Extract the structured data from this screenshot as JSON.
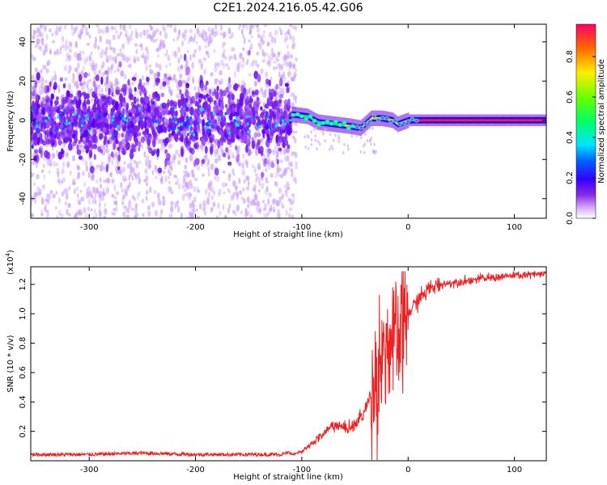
{
  "title": "C2E1.2024.216.05.42.G06",
  "chart_data": [
    {
      "type": "heatmap",
      "xlabel": "Height of straight line (km)",
      "ylabel": "Frequency (Hz)",
      "xlim": [
        -355,
        130
      ],
      "ylim": [
        -50,
        49
      ],
      "xticks": [
        -300,
        -200,
        -100,
        0,
        100
      ],
      "xtick_labels": [
        "-300",
        "-200",
        "-100",
        "0",
        "100"
      ],
      "yticks": [
        -40,
        -20,
        0,
        20,
        40
      ],
      "ytick_labels": [
        "-40",
        "-20",
        "0",
        "20",
        "40"
      ],
      "colorbar": {
        "label": "Normalized spectral amplitude",
        "range": [
          0,
          0.96
        ],
        "ticks": [
          0.0,
          0.2,
          0.4,
          0.6,
          0.8
        ],
        "tick_labels": [
          "0.0",
          "0.2",
          "0.4",
          "0.6",
          "0.8"
        ]
      },
      "description_points": {
        "noise_region_x": [
          -355,
          -110
        ],
        "tone_region_x": [
          -110,
          130
        ],
        "tone_freq_track": [
          {
            "x": -110,
            "f": 3
          },
          {
            "x": -95,
            "f": 2
          },
          {
            "x": -85,
            "f": -1
          },
          {
            "x": -70,
            "f": -2
          },
          {
            "x": -55,
            "f": -3
          },
          {
            "x": -45,
            "f": -4
          },
          {
            "x": -35,
            "f": 1
          },
          {
            "x": -25,
            "f": 1
          },
          {
            "x": -15,
            "f": 0
          },
          {
            "x": -10,
            "f": -2
          },
          {
            "x": 0,
            "f": 0
          },
          {
            "x": 130,
            "f": 0
          }
        ]
      }
    },
    {
      "type": "line",
      "xlabel": "Height of straight line (km)",
      "ylabel": "SNR (10 * v/v)",
      "yscale_label": "(x10",
      "yscale_exp": "4",
      "yscale_close": ")",
      "xlim": [
        -355,
        130
      ],
      "ylim": [
        0,
        1.32
      ],
      "xticks": [
        -300,
        -200,
        -100,
        0,
        100
      ],
      "xtick_labels": [
        "-300",
        "-200",
        "-100",
        "0",
        "100"
      ],
      "yticks": [
        0.2,
        0.4,
        0.6,
        0.8,
        1.0,
        1.2
      ],
      "ytick_labels": [
        "0.2",
        "0.4",
        "0.6",
        "0.8",
        "1.0",
        "1.2"
      ],
      "color": "#ee2020",
      "series": [
        {
          "name": "SNR",
          "x": [
            -355,
            -300,
            -250,
            -200,
            -150,
            -120,
            -100,
            -90,
            -80,
            -70,
            -60,
            -50,
            -40,
            -30,
            -25,
            -20,
            -15,
            -10,
            -5,
            0,
            10,
            20,
            30,
            50,
            70,
            100,
            130
          ],
          "y": [
            0.03,
            0.03,
            0.04,
            0.03,
            0.03,
            0.03,
            0.06,
            0.12,
            0.18,
            0.25,
            0.22,
            0.24,
            0.35,
            0.55,
            0.75,
            0.8,
            0.75,
            0.82,
            0.9,
            1.0,
            1.1,
            1.17,
            1.2,
            1.22,
            1.24,
            1.26,
            1.27
          ]
        }
      ]
    }
  ]
}
